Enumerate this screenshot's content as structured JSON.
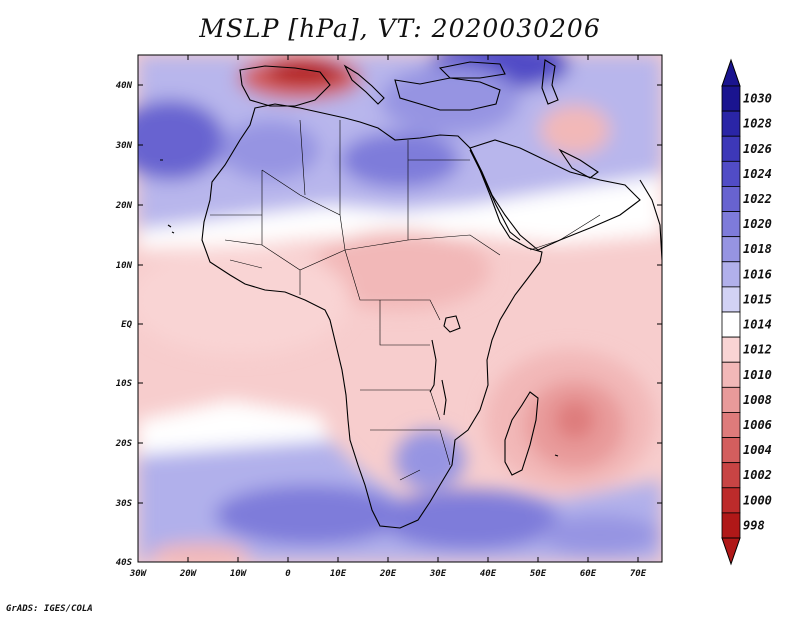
{
  "title": "MSLP [hPa], VT: 2020030206",
  "credit": "GrADS: IGES/COLA",
  "axes": {
    "lon_ticks": [
      "30W",
      "20W",
      "10W",
      "0",
      "10E",
      "20E",
      "30E",
      "40E",
      "50E",
      "60E",
      "70E"
    ],
    "lat_ticks": [
      "40N",
      "30N",
      "20N",
      "10N",
      "EQ",
      "10S",
      "20S",
      "30S",
      "40S"
    ]
  },
  "colorbar": {
    "levels": [
      "1030",
      "1028",
      "1026",
      "1024",
      "1022",
      "1020",
      "1018",
      "1016",
      "1015",
      "1014",
      "1012",
      "1010",
      "1008",
      "1006",
      "1004",
      "1002",
      "1000",
      "998"
    ],
    "colors": [
      "#1a148f",
      "#2a25a6",
      "#3d38b8",
      "#514cc6",
      "#6863d0",
      "#7e7bda",
      "#9694e2",
      "#b1b0eb",
      "#d2d2f5",
      "#ffffff",
      "#f9d4d4",
      "#f2b8b8",
      "#e89a9a",
      "#de7b7b",
      "#d35e5e",
      "#c84444",
      "#bd2b2b",
      "#b01818"
    ]
  },
  "map_features": {
    "high_pressure": [
      "North Africa",
      "Mediterranean",
      "Southern Africa"
    ],
    "low_pressure": [
      "Iberia",
      "Madagascar region"
    ]
  }
}
